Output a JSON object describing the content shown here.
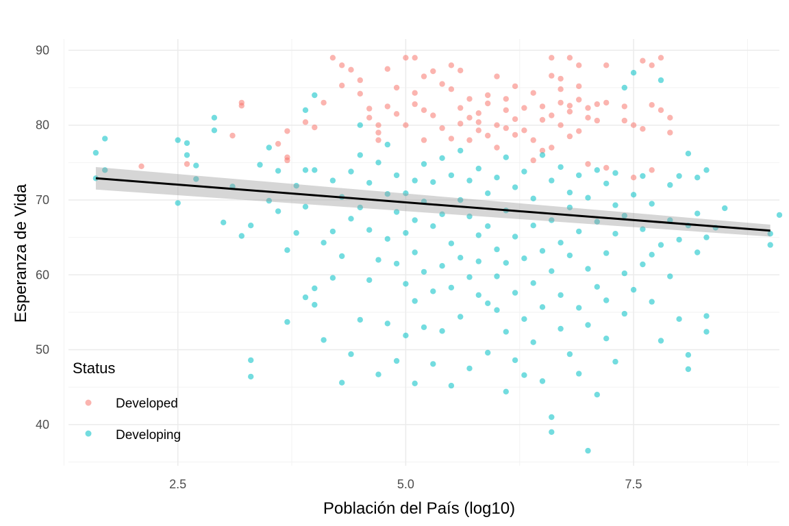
{
  "chart_data": {
    "type": "scatter",
    "xlabel": "Población del País (log10)",
    "ylabel": "Esperanza de Vida",
    "xlim": [
      1.3,
      9.1
    ],
    "ylim": [
      34.5,
      91.5
    ],
    "x_ticks": [
      2.5,
      5.0,
      7.5
    ],
    "x_tick_labels": [
      "2.5",
      "5.0",
      "7.5"
    ],
    "y_ticks": [
      40,
      50,
      60,
      70,
      80,
      90
    ],
    "y_tick_labels": [
      "40",
      "50",
      "60",
      "70",
      "80",
      "90"
    ],
    "grid": true,
    "legend": {
      "title": "Status",
      "position": "bottom-left",
      "entries": [
        {
          "label": "Developed",
          "color": "#F8766D"
        },
        {
          "label": "Developing",
          "color": "#00BFC4"
        }
      ]
    },
    "series": [
      {
        "name": "Developed",
        "color": "#F8766D",
        "points": [
          [
            2.1,
            74.5
          ],
          [
            2.6,
            74.8
          ],
          [
            3.1,
            78.6
          ],
          [
            3.2,
            83.0
          ],
          [
            3.2,
            82.6
          ],
          [
            3.6,
            77.5
          ],
          [
            3.7,
            79.2
          ],
          [
            3.7,
            75.7
          ],
          [
            3.7,
            75.3
          ],
          [
            3.9,
            80.4
          ],
          [
            4.0,
            79.7
          ],
          [
            4.1,
            83.0
          ],
          [
            4.2,
            89.0
          ],
          [
            4.3,
            88.0
          ],
          [
            4.3,
            85.3
          ],
          [
            4.4,
            87.4
          ],
          [
            4.5,
            86.0
          ],
          [
            4.5,
            84.2
          ],
          [
            4.6,
            82.2
          ],
          [
            4.6,
            81.0
          ],
          [
            4.7,
            80.0
          ],
          [
            4.7,
            79.0
          ],
          [
            4.7,
            78.0
          ],
          [
            4.8,
            82.5
          ],
          [
            4.8,
            87.5
          ],
          [
            4.9,
            81.5
          ],
          [
            4.9,
            85.0
          ],
          [
            5.0,
            89.0
          ],
          [
            5.0,
            80.0
          ],
          [
            5.1,
            82.8
          ],
          [
            5.1,
            84.3
          ],
          [
            5.1,
            89.0
          ],
          [
            5.2,
            82.0
          ],
          [
            5.2,
            78.0
          ],
          [
            5.2,
            86.5
          ],
          [
            5.3,
            81.3
          ],
          [
            5.3,
            87.2
          ],
          [
            5.4,
            85.5
          ],
          [
            5.4,
            79.6
          ],
          [
            5.5,
            88.0
          ],
          [
            5.5,
            84.8
          ],
          [
            5.5,
            78.2
          ],
          [
            5.6,
            87.3
          ],
          [
            5.6,
            82.3
          ],
          [
            5.6,
            80.2
          ],
          [
            5.7,
            81.0
          ],
          [
            5.7,
            78.0
          ],
          [
            5.7,
            83.5
          ],
          [
            5.8,
            79.3
          ],
          [
            5.8,
            81.6
          ],
          [
            5.8,
            80.4
          ],
          [
            5.9,
            84.0
          ],
          [
            5.9,
            82.9
          ],
          [
            5.9,
            78.6
          ],
          [
            6.0,
            80.0
          ],
          [
            6.0,
            86.5
          ],
          [
            6.0,
            77.0
          ],
          [
            6.1,
            83.5
          ],
          [
            6.1,
            82.0
          ],
          [
            6.1,
            79.6
          ],
          [
            6.2,
            85.2
          ],
          [
            6.2,
            80.8
          ],
          [
            6.2,
            78.7
          ],
          [
            6.3,
            82.3
          ],
          [
            6.3,
            79.3
          ],
          [
            6.4,
            84.3
          ],
          [
            6.4,
            75.3
          ],
          [
            6.4,
            78.0
          ],
          [
            6.5,
            80.7
          ],
          [
            6.5,
            82.5
          ],
          [
            6.5,
            76.6
          ],
          [
            6.6,
            89.0
          ],
          [
            6.6,
            86.6
          ],
          [
            6.6,
            77.0
          ],
          [
            6.6,
            81.3
          ],
          [
            6.7,
            83.0
          ],
          [
            6.7,
            80.0
          ],
          [
            6.7,
            86.2
          ],
          [
            6.7,
            84.8
          ],
          [
            6.8,
            89.0
          ],
          [
            6.8,
            81.8
          ],
          [
            6.8,
            78.5
          ],
          [
            6.8,
            82.6
          ],
          [
            6.9,
            88.0
          ],
          [
            6.9,
            85.2
          ],
          [
            6.9,
            79.2
          ],
          [
            6.9,
            83.4
          ],
          [
            7.0,
            81.0
          ],
          [
            7.0,
            82.3
          ],
          [
            7.0,
            74.8
          ],
          [
            7.1,
            82.8
          ],
          [
            7.1,
            80.6
          ],
          [
            7.2,
            88.0
          ],
          [
            7.2,
            83.0
          ],
          [
            7.2,
            74.3
          ],
          [
            7.4,
            80.6
          ],
          [
            7.4,
            82.5
          ],
          [
            7.5,
            80.0
          ],
          [
            7.5,
            73.0
          ],
          [
            7.6,
            88.6
          ],
          [
            7.6,
            79.5
          ],
          [
            7.7,
            88.0
          ],
          [
            7.7,
            82.7
          ],
          [
            7.7,
            74.0
          ],
          [
            7.8,
            89.0
          ],
          [
            7.8,
            82.0
          ],
          [
            7.9,
            81.0
          ],
          [
            7.9,
            79.0
          ]
        ]
      },
      {
        "name": "Developing",
        "color": "#00BFC4",
        "points": [
          [
            1.6,
            72.9
          ],
          [
            1.6,
            76.3
          ],
          [
            1.7,
            78.2
          ],
          [
            1.7,
            74.0
          ],
          [
            2.5,
            78.0
          ],
          [
            2.5,
            69.6
          ],
          [
            2.6,
            77.6
          ],
          [
            2.6,
            76.0
          ],
          [
            2.7,
            74.6
          ],
          [
            2.7,
            72.8
          ],
          [
            2.9,
            79.3
          ],
          [
            2.9,
            81.0
          ],
          [
            3.0,
            67.0
          ],
          [
            3.1,
            71.8
          ],
          [
            3.2,
            65.2
          ],
          [
            3.3,
            66.6
          ],
          [
            3.3,
            48.6
          ],
          [
            3.3,
            46.4
          ],
          [
            3.4,
            74.7
          ],
          [
            3.5,
            69.9
          ],
          [
            3.5,
            77.0
          ],
          [
            3.6,
            68.5
          ],
          [
            3.6,
            73.9
          ],
          [
            3.7,
            63.3
          ],
          [
            3.7,
            53.7
          ],
          [
            3.8,
            65.6
          ],
          [
            3.8,
            71.9
          ],
          [
            3.9,
            74.0
          ],
          [
            3.9,
            69.1
          ],
          [
            3.9,
            57.0
          ],
          [
            3.9,
            82.0
          ],
          [
            4.0,
            84.0
          ],
          [
            4.0,
            56.0
          ],
          [
            4.0,
            58.2
          ],
          [
            4.0,
            74.0
          ],
          [
            4.1,
            64.3
          ],
          [
            4.1,
            51.3
          ],
          [
            4.2,
            72.6
          ],
          [
            4.2,
            59.6
          ],
          [
            4.2,
            65.8
          ],
          [
            4.3,
            70.4
          ],
          [
            4.3,
            62.5
          ],
          [
            4.3,
            45.6
          ],
          [
            4.4,
            67.5
          ],
          [
            4.4,
            73.8
          ],
          [
            4.4,
            49.4
          ],
          [
            4.5,
            69.0
          ],
          [
            4.5,
            76.0
          ],
          [
            4.5,
            54.0
          ],
          [
            4.5,
            80.0
          ],
          [
            4.6,
            72.3
          ],
          [
            4.6,
            66.0
          ],
          [
            4.6,
            59.3
          ],
          [
            4.7,
            75.0
          ],
          [
            4.7,
            62.0
          ],
          [
            4.7,
            46.7
          ],
          [
            4.8,
            70.8
          ],
          [
            4.8,
            64.8
          ],
          [
            4.8,
            53.5
          ],
          [
            4.8,
            77.4
          ],
          [
            4.9,
            68.4
          ],
          [
            4.9,
            61.5
          ],
          [
            4.9,
            48.5
          ],
          [
            4.9,
            73.3
          ],
          [
            5.0,
            70.9
          ],
          [
            5.0,
            58.8
          ],
          [
            5.0,
            65.6
          ],
          [
            5.0,
            51.9
          ],
          [
            5.1,
            72.6
          ],
          [
            5.1,
            63.0
          ],
          [
            5.1,
            45.5
          ],
          [
            5.1,
            67.3
          ],
          [
            5.1,
            56.5
          ],
          [
            5.2,
            74.8
          ],
          [
            5.2,
            60.4
          ],
          [
            5.2,
            69.8
          ],
          [
            5.2,
            53.0
          ],
          [
            5.3,
            66.5
          ],
          [
            5.3,
            72.4
          ],
          [
            5.3,
            48.1
          ],
          [
            5.3,
            57.8
          ],
          [
            5.4,
            61.2
          ],
          [
            5.4,
            75.6
          ],
          [
            5.4,
            68.1
          ],
          [
            5.4,
            52.5
          ],
          [
            5.5,
            73.3
          ],
          [
            5.5,
            64.2
          ],
          [
            5.5,
            58.3
          ],
          [
            5.5,
            45.2
          ],
          [
            5.6,
            70.0
          ],
          [
            5.6,
            76.6
          ],
          [
            5.6,
            62.3
          ],
          [
            5.6,
            54.4
          ],
          [
            5.7,
            67.8
          ],
          [
            5.7,
            72.6
          ],
          [
            5.7,
            59.7
          ],
          [
            5.7,
            47.5
          ],
          [
            5.8,
            74.2
          ],
          [
            5.8,
            65.3
          ],
          [
            5.8,
            57.3
          ],
          [
            5.8,
            61.8
          ],
          [
            5.9,
            70.9
          ],
          [
            5.9,
            56.2
          ],
          [
            5.9,
            49.6
          ],
          [
            5.9,
            66.5
          ],
          [
            6.0,
            73.0
          ],
          [
            6.0,
            63.4
          ],
          [
            6.0,
            55.3
          ],
          [
            6.0,
            59.8
          ],
          [
            6.1,
            68.6
          ],
          [
            6.1,
            75.7
          ],
          [
            6.1,
            52.4
          ],
          [
            6.1,
            44.4
          ],
          [
            6.1,
            61.6
          ],
          [
            6.2,
            71.7
          ],
          [
            6.2,
            57.6
          ],
          [
            6.2,
            65.1
          ],
          [
            6.2,
            48.6
          ],
          [
            6.3,
            73.8
          ],
          [
            6.3,
            62.2
          ],
          [
            6.3,
            54.1
          ],
          [
            6.3,
            46.6
          ],
          [
            6.4,
            70.2
          ],
          [
            6.4,
            66.6
          ],
          [
            6.4,
            58.9
          ],
          [
            6.4,
            51.0
          ],
          [
            6.5,
            76.0
          ],
          [
            6.5,
            63.2
          ],
          [
            6.5,
            55.7
          ],
          [
            6.5,
            45.8
          ],
          [
            6.6,
            72.6
          ],
          [
            6.6,
            60.5
          ],
          [
            6.6,
            67.3
          ],
          [
            6.6,
            41.0
          ],
          [
            6.6,
            39.0
          ],
          [
            6.7,
            74.4
          ],
          [
            6.7,
            64.3
          ],
          [
            6.7,
            52.8
          ],
          [
            6.7,
            57.3
          ],
          [
            6.8,
            71.0
          ],
          [
            6.8,
            62.6
          ],
          [
            6.8,
            49.4
          ],
          [
            6.8,
            69.0
          ],
          [
            6.9,
            73.3
          ],
          [
            6.9,
            65.8
          ],
          [
            6.9,
            55.6
          ],
          [
            6.9,
            46.8
          ],
          [
            7.0,
            70.3
          ],
          [
            7.0,
            60.8
          ],
          [
            7.0,
            53.3
          ],
          [
            7.0,
            36.5
          ],
          [
            7.1,
            74.0
          ],
          [
            7.1,
            67.1
          ],
          [
            7.1,
            58.4
          ],
          [
            7.1,
            44.0
          ],
          [
            7.2,
            72.2
          ],
          [
            7.2,
            62.9
          ],
          [
            7.2,
            51.5
          ],
          [
            7.2,
            56.6
          ],
          [
            7.3,
            69.3
          ],
          [
            7.3,
            65.5
          ],
          [
            7.3,
            48.4
          ],
          [
            7.3,
            73.6
          ],
          [
            7.4,
            60.2
          ],
          [
            7.4,
            67.9
          ],
          [
            7.4,
            54.8
          ],
          [
            7.4,
            85.0
          ],
          [
            7.5,
            70.7
          ],
          [
            7.5,
            58.0
          ],
          [
            7.5,
            87.0
          ],
          [
            7.6,
            66.1
          ],
          [
            7.6,
            61.4
          ],
          [
            7.6,
            73.2
          ],
          [
            7.7,
            62.7
          ],
          [
            7.7,
            69.5
          ],
          [
            7.7,
            56.4
          ],
          [
            7.8,
            64.0
          ],
          [
            7.8,
            86.0
          ],
          [
            7.8,
            51.2
          ],
          [
            7.9,
            72.0
          ],
          [
            7.9,
            67.3
          ],
          [
            7.9,
            59.8
          ],
          [
            8.0,
            73.2
          ],
          [
            8.0,
            64.7
          ],
          [
            8.0,
            54.1
          ],
          [
            8.1,
            76.2
          ],
          [
            8.1,
            66.6
          ],
          [
            8.1,
            49.3
          ],
          [
            8.1,
            47.4
          ],
          [
            8.2,
            63.0
          ],
          [
            8.2,
            68.2
          ],
          [
            8.2,
            73.0
          ],
          [
            8.3,
            65.0
          ],
          [
            8.3,
            52.4
          ],
          [
            8.3,
            54.5
          ],
          [
            8.3,
            74.0
          ],
          [
            8.4,
            66.3
          ],
          [
            8.5,
            68.9
          ],
          [
            9.0,
            64.0
          ],
          [
            9.0,
            65.5
          ],
          [
            9.1,
            68.0
          ]
        ]
      }
    ],
    "trend_line": {
      "method": "lm",
      "color": "#000000",
      "x": [
        1.6,
        9.0
      ],
      "y": [
        72.9,
        65.9
      ],
      "ci_lower": [
        71.4,
        65.1
      ],
      "ci_upper": [
        74.4,
        66.7
      ]
    }
  }
}
